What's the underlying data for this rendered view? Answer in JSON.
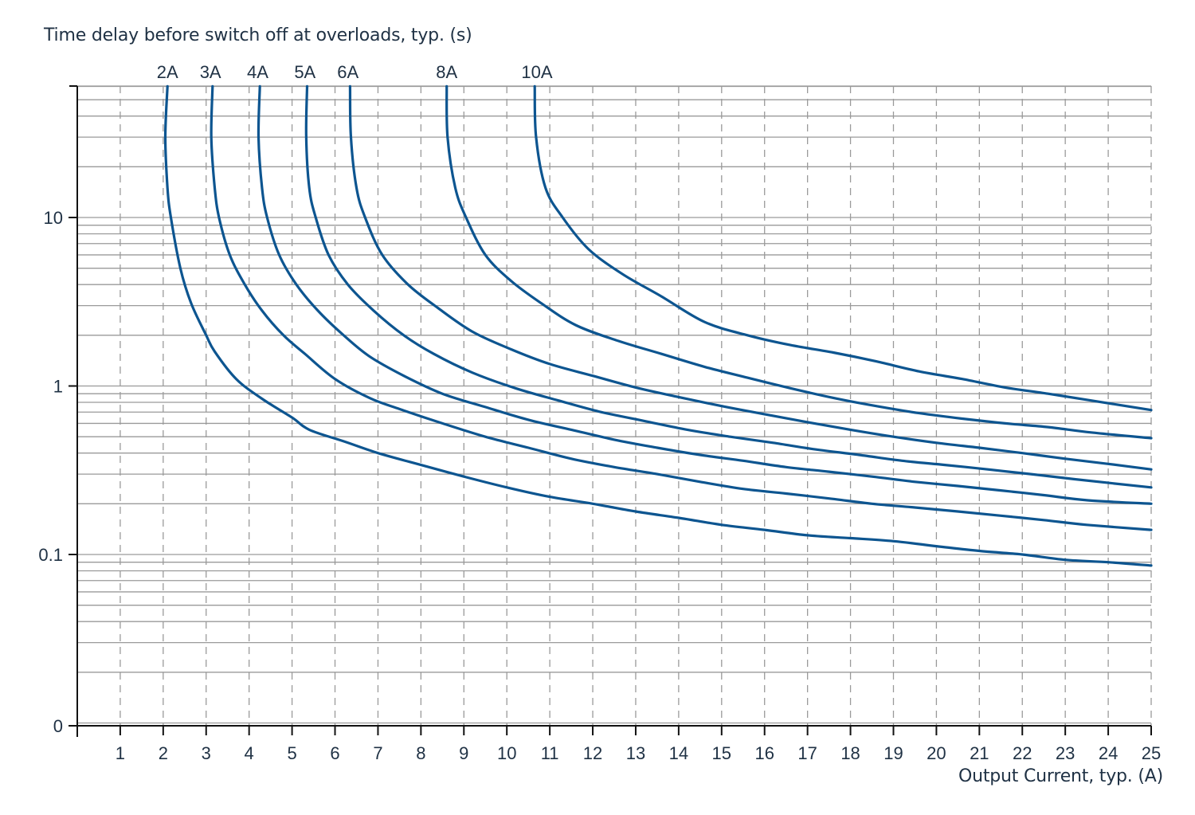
{
  "chart_data": {
    "type": "line",
    "title": "",
    "ylabel": "Time delay before switch off at overloads, typ. (s)",
    "xlabel": "Output Current, typ. (A)",
    "xscale": "linear",
    "yscale": "log",
    "xlim": [
      0,
      25
    ],
    "ylim": [
      0.01,
      60
    ],
    "x_ticks": [
      1,
      2,
      3,
      4,
      5,
      6,
      7,
      8,
      9,
      10,
      11,
      12,
      13,
      14,
      15,
      16,
      17,
      18,
      19,
      20,
      21,
      22,
      23,
      24,
      25
    ],
    "y_ticks": [
      {
        "value": 0.01,
        "label": "0"
      },
      {
        "value": 0.1,
        "label": "0.1"
      },
      {
        "value": 1,
        "label": "1"
      },
      {
        "value": 10,
        "label": "10"
      }
    ],
    "grid": {
      "x": "dashed",
      "y": "solid-log-minor"
    },
    "legend": "inline-labels-top",
    "line_color": "#0d5590",
    "series": [
      {
        "name": "2A",
        "label_x": 2.1,
        "points": [
          [
            2.1,
            60
          ],
          [
            2.05,
            30
          ],
          [
            2.1,
            15
          ],
          [
            2.18,
            10
          ],
          [
            2.4,
            5
          ],
          [
            2.65,
            3.1
          ],
          [
            3.0,
            2.0
          ],
          [
            3.2,
            1.6
          ],
          [
            3.7,
            1.1
          ],
          [
            4.3,
            0.84
          ],
          [
            5.0,
            0.65
          ],
          [
            5.4,
            0.55
          ],
          [
            6.2,
            0.47
          ],
          [
            7.0,
            0.4
          ],
          [
            8.0,
            0.34
          ],
          [
            9.0,
            0.29
          ],
          [
            10.0,
            0.25
          ],
          [
            11.0,
            0.22
          ],
          [
            12.0,
            0.2
          ],
          [
            13.0,
            0.18
          ],
          [
            14.0,
            0.165
          ],
          [
            15.0,
            0.15
          ],
          [
            16.0,
            0.14
          ],
          [
            17.0,
            0.13
          ],
          [
            18.0,
            0.125
          ],
          [
            19.0,
            0.12
          ],
          [
            20.0,
            0.112
          ],
          [
            21.0,
            0.105
          ],
          [
            22.0,
            0.1
          ],
          [
            23.0,
            0.093
          ],
          [
            24.0,
            0.09
          ],
          [
            25.0,
            0.086
          ]
        ]
      },
      {
        "name": "3A",
        "label_x": 3.1,
        "points": [
          [
            3.15,
            60
          ],
          [
            3.12,
            30
          ],
          [
            3.2,
            15
          ],
          [
            3.3,
            10
          ],
          [
            3.55,
            6
          ],
          [
            3.9,
            4
          ],
          [
            4.3,
            2.8
          ],
          [
            4.8,
            2.0
          ],
          [
            5.3,
            1.55
          ],
          [
            6.0,
            1.1
          ],
          [
            6.8,
            0.85
          ],
          [
            7.5,
            0.73
          ],
          [
            8.5,
            0.6
          ],
          [
            9.5,
            0.5
          ],
          [
            10.5,
            0.43
          ],
          [
            11.5,
            0.37
          ],
          [
            12.5,
            0.33
          ],
          [
            13.5,
            0.3
          ],
          [
            14.5,
            0.27
          ],
          [
            15.5,
            0.245
          ],
          [
            16.5,
            0.23
          ],
          [
            17.5,
            0.215
          ],
          [
            18.5,
            0.2
          ],
          [
            19.5,
            0.19
          ],
          [
            20.5,
            0.18
          ],
          [
            21.5,
            0.17
          ],
          [
            22.5,
            0.16
          ],
          [
            23.5,
            0.15
          ],
          [
            25.0,
            0.14
          ]
        ]
      },
      {
        "name": "4A",
        "label_x": 4.2,
        "points": [
          [
            4.25,
            60
          ],
          [
            4.22,
            30
          ],
          [
            4.3,
            15
          ],
          [
            4.42,
            10
          ],
          [
            4.7,
            6
          ],
          [
            5.1,
            4
          ],
          [
            5.6,
            2.8
          ],
          [
            6.2,
            2.0
          ],
          [
            6.8,
            1.5
          ],
          [
            7.6,
            1.15
          ],
          [
            8.5,
            0.9
          ],
          [
            9.5,
            0.75
          ],
          [
            10.5,
            0.63
          ],
          [
            11.5,
            0.55
          ],
          [
            12.5,
            0.48
          ],
          [
            13.5,
            0.43
          ],
          [
            14.5,
            0.39
          ],
          [
            15.5,
            0.36
          ],
          [
            16.5,
            0.33
          ],
          [
            17.5,
            0.31
          ],
          [
            18.5,
            0.29
          ],
          [
            19.5,
            0.27
          ],
          [
            20.5,
            0.255
          ],
          [
            21.5,
            0.24
          ],
          [
            22.5,
            0.225
          ],
          [
            23.5,
            0.21
          ],
          [
            25.0,
            0.2
          ]
        ]
      },
      {
        "name": "5A",
        "label_x": 5.3,
        "points": [
          [
            5.35,
            60
          ],
          [
            5.33,
            30
          ],
          [
            5.4,
            15
          ],
          [
            5.55,
            10
          ],
          [
            5.85,
            6
          ],
          [
            6.3,
            4
          ],
          [
            6.9,
            2.8
          ],
          [
            7.6,
            2.0
          ],
          [
            8.3,
            1.55
          ],
          [
            9.2,
            1.2
          ],
          [
            10.2,
            0.97
          ],
          [
            11.2,
            0.82
          ],
          [
            12.2,
            0.7
          ],
          [
            13.2,
            0.62
          ],
          [
            14.2,
            0.55
          ],
          [
            15.2,
            0.5
          ],
          [
            16.2,
            0.46
          ],
          [
            17.2,
            0.42
          ],
          [
            18.2,
            0.39
          ],
          [
            19.2,
            0.36
          ],
          [
            20.2,
            0.34
          ],
          [
            21.2,
            0.32
          ],
          [
            22.2,
            0.3
          ],
          [
            23.2,
            0.28
          ],
          [
            25.0,
            0.25
          ]
        ]
      },
      {
        "name": "6A",
        "label_x": 6.3,
        "points": [
          [
            6.35,
            60
          ],
          [
            6.37,
            30
          ],
          [
            6.5,
            15
          ],
          [
            6.7,
            10
          ],
          [
            7.1,
            6
          ],
          [
            7.7,
            4
          ],
          [
            8.4,
            2.9
          ],
          [
            9.2,
            2.1
          ],
          [
            10.1,
            1.65
          ],
          [
            11.0,
            1.35
          ],
          [
            12.0,
            1.15
          ],
          [
            13.0,
            0.98
          ],
          [
            14.0,
            0.86
          ],
          [
            15.0,
            0.76
          ],
          [
            16.0,
            0.68
          ],
          [
            17.0,
            0.61
          ],
          [
            18.0,
            0.55
          ],
          [
            19.0,
            0.5
          ],
          [
            20.0,
            0.46
          ],
          [
            21.0,
            0.43
          ],
          [
            22.0,
            0.4
          ],
          [
            23.0,
            0.37
          ],
          [
            24.0,
            0.345
          ],
          [
            25.0,
            0.32
          ]
        ]
      },
      {
        "name": "8A",
        "label_x": 8.6,
        "points": [
          [
            8.6,
            60
          ],
          [
            8.62,
            30
          ],
          [
            8.8,
            15
          ],
          [
            9.05,
            10
          ],
          [
            9.5,
            6
          ],
          [
            10.1,
            4.2
          ],
          [
            10.8,
            3.1
          ],
          [
            11.6,
            2.3
          ],
          [
            12.6,
            1.85
          ],
          [
            13.6,
            1.55
          ],
          [
            14.6,
            1.3
          ],
          [
            15.6,
            1.12
          ],
          [
            16.6,
            0.97
          ],
          [
            17.6,
            0.85
          ],
          [
            18.6,
            0.76
          ],
          [
            19.6,
            0.69
          ],
          [
            20.6,
            0.64
          ],
          [
            21.6,
            0.6
          ],
          [
            22.6,
            0.57
          ],
          [
            23.6,
            0.53
          ],
          [
            25.0,
            0.49
          ]
        ]
      },
      {
        "name": "10A",
        "label_x": 10.7,
        "points": [
          [
            10.65,
            60
          ],
          [
            10.68,
            30
          ],
          [
            10.9,
            15
          ],
          [
            11.3,
            10
          ],
          [
            11.9,
            6.5
          ],
          [
            12.7,
            4.6
          ],
          [
            13.6,
            3.4
          ],
          [
            14.6,
            2.4
          ],
          [
            15.6,
            2.0
          ],
          [
            16.6,
            1.75
          ],
          [
            17.6,
            1.58
          ],
          [
            18.6,
            1.4
          ],
          [
            19.6,
            1.22
          ],
          [
            20.6,
            1.1
          ],
          [
            21.6,
            0.98
          ],
          [
            22.6,
            0.9
          ],
          [
            23.6,
            0.82
          ],
          [
            25.0,
            0.72
          ]
        ]
      }
    ]
  },
  "labels": {
    "y_title": "Time delay before switch off at overloads, typ. (s)",
    "x_title": "Output Current, typ. (A)"
  }
}
